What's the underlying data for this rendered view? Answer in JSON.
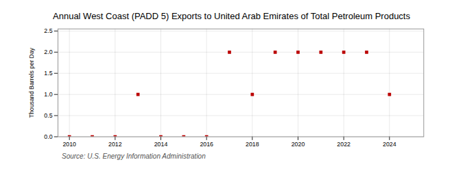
{
  "chart_data": {
    "type": "scatter",
    "title": "Annual West Coast (PADD 5) Exports to United Arab Emirates of Total Petroleum Products",
    "ylabel": "Thousand Barrels per Day",
    "annotations": [
      "Source: U.S. Energy Information Administration"
    ],
    "x": [
      2010,
      2011,
      2012,
      2013,
      2014,
      2015,
      2016,
      2017,
      2018,
      2019,
      2020,
      2021,
      2022,
      2023,
      2024
    ],
    "values": [
      0.0,
      0.0,
      0.0,
      1.0,
      0.0,
      0.0,
      0.0,
      2.0,
      1.0,
      2.0,
      2.0,
      2.0,
      2.0,
      2.0,
      1.0
    ],
    "color": "#bb0000",
    "marker": "square",
    "xlim": [
      2009.5,
      2025.5
    ],
    "xticks": [
      2010,
      2012,
      2014,
      2016,
      2018,
      2020,
      2022,
      2024
    ],
    "ylim": [
      0.0,
      2.55
    ],
    "yticks": [
      {
        "value": 0,
        "label": "0.0"
      },
      0.5,
      {
        "value": 1,
        "label": "1.0"
      },
      1.5,
      {
        "value": 2,
        "label": "2.0"
      },
      2.5
    ],
    "grid": true
  }
}
